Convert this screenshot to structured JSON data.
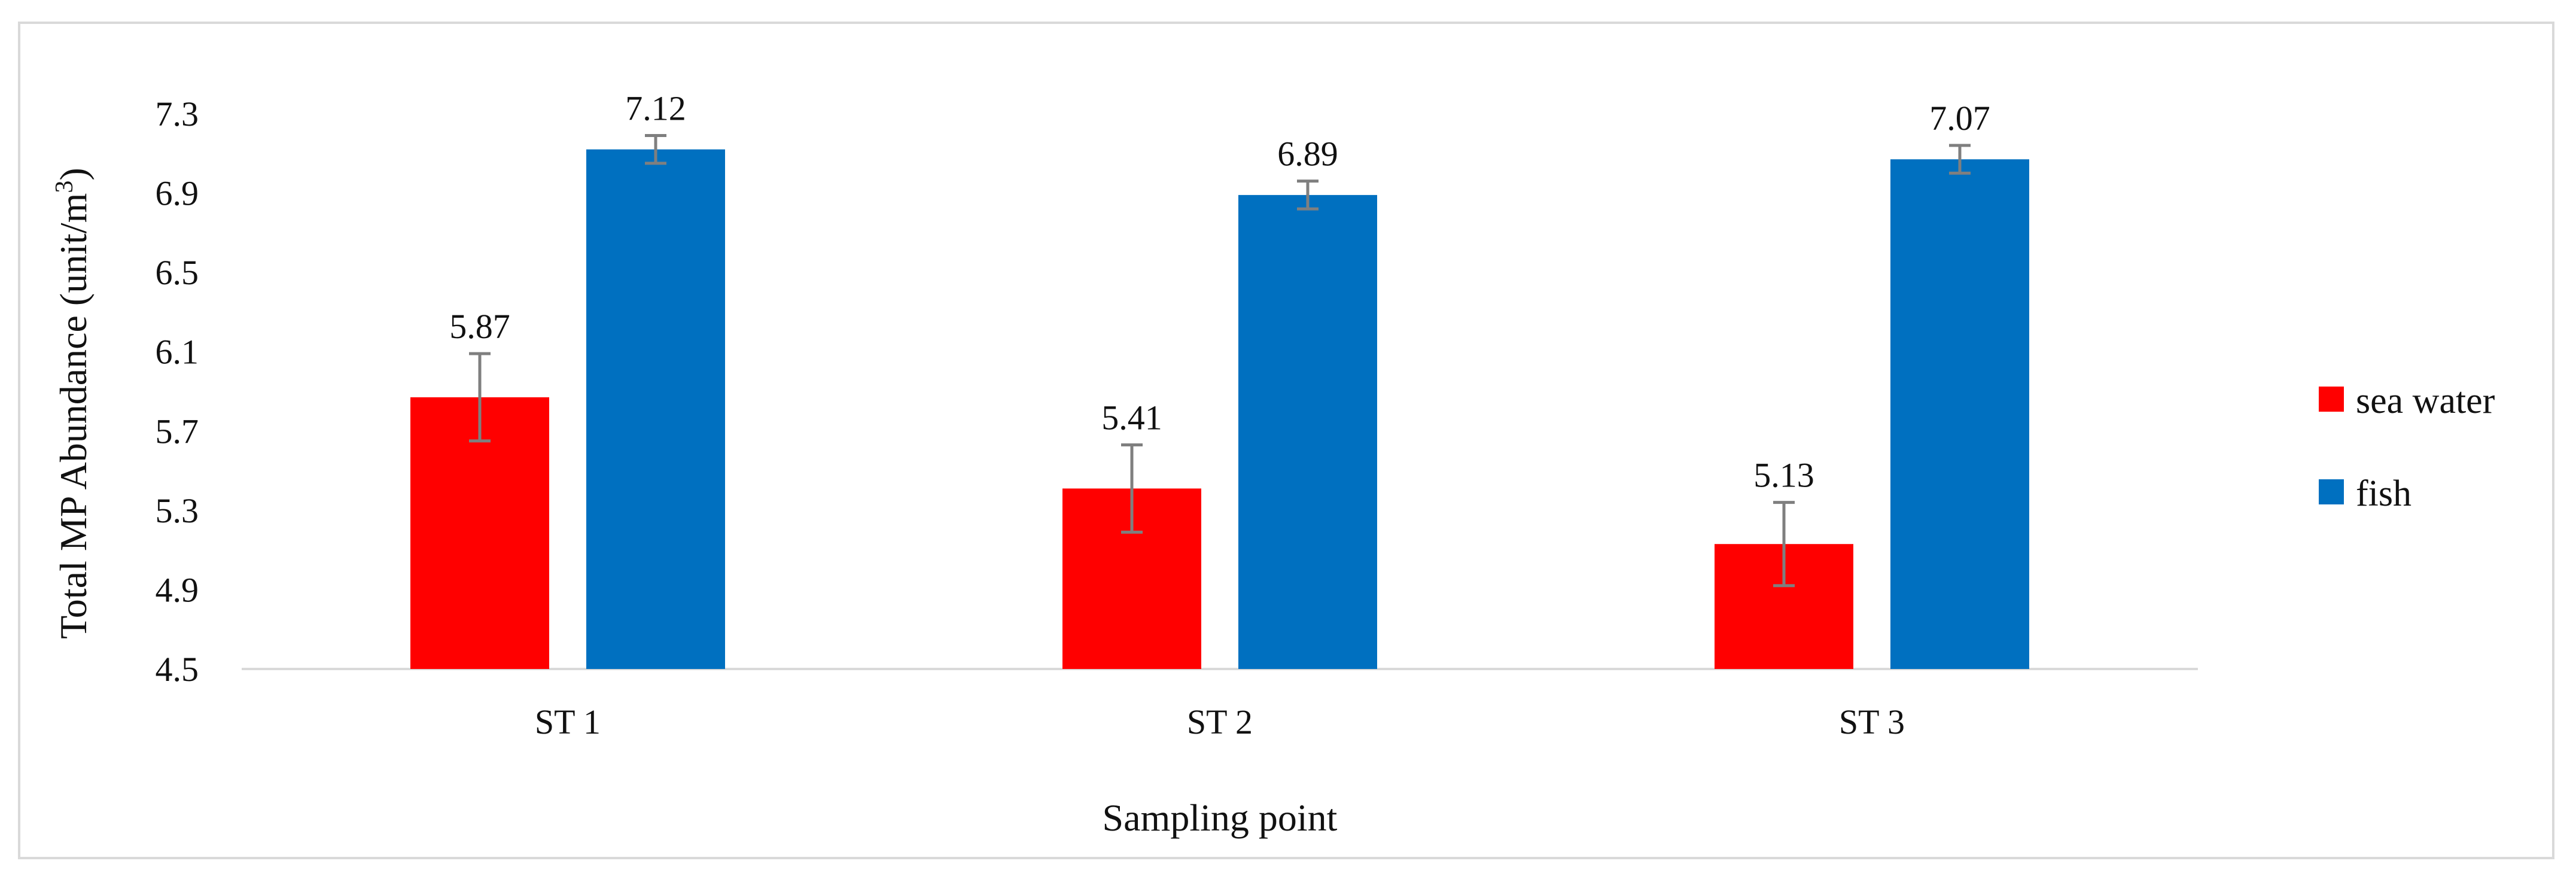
{
  "chart_data": {
    "type": "bar",
    "xlabel": "Sampling point",
    "ylabel_main": "Total MP Abundance (unit/m",
    "ylabel_sup": "3",
    "ylabel_close": ")",
    "categories": [
      "ST 1",
      "ST 2",
      "ST 3"
    ],
    "series": [
      {
        "name": "sea water",
        "color": "#ff0000",
        "values": [
          5.87,
          5.41,
          5.13
        ],
        "value_labels": [
          "5.87",
          "5.41",
          "5.13"
        ],
        "error": [
          0.22,
          0.22,
          0.21
        ]
      },
      {
        "name": "fish",
        "color": "#0070c0",
        "values": [
          7.12,
          6.89,
          7.07
        ],
        "value_labels": [
          "7.12",
          "6.89",
          "7.07"
        ],
        "error": [
          0.07,
          0.07,
          0.07
        ]
      }
    ],
    "ylim": [
      4.5,
      7.3
    ],
    "yticks": [
      4.5,
      4.9,
      5.3,
      5.7,
      6.1,
      6.5,
      6.9,
      7.3
    ],
    "ytick_labels": [
      "4.5",
      "4.9",
      "5.3",
      "5.7",
      "6.1",
      "6.5",
      "6.9",
      "7.3"
    ],
    "grid": false,
    "legend_position": "right",
    "error_bar_color": "#7f7f7f",
    "axis_color": "#d9d9d9"
  }
}
